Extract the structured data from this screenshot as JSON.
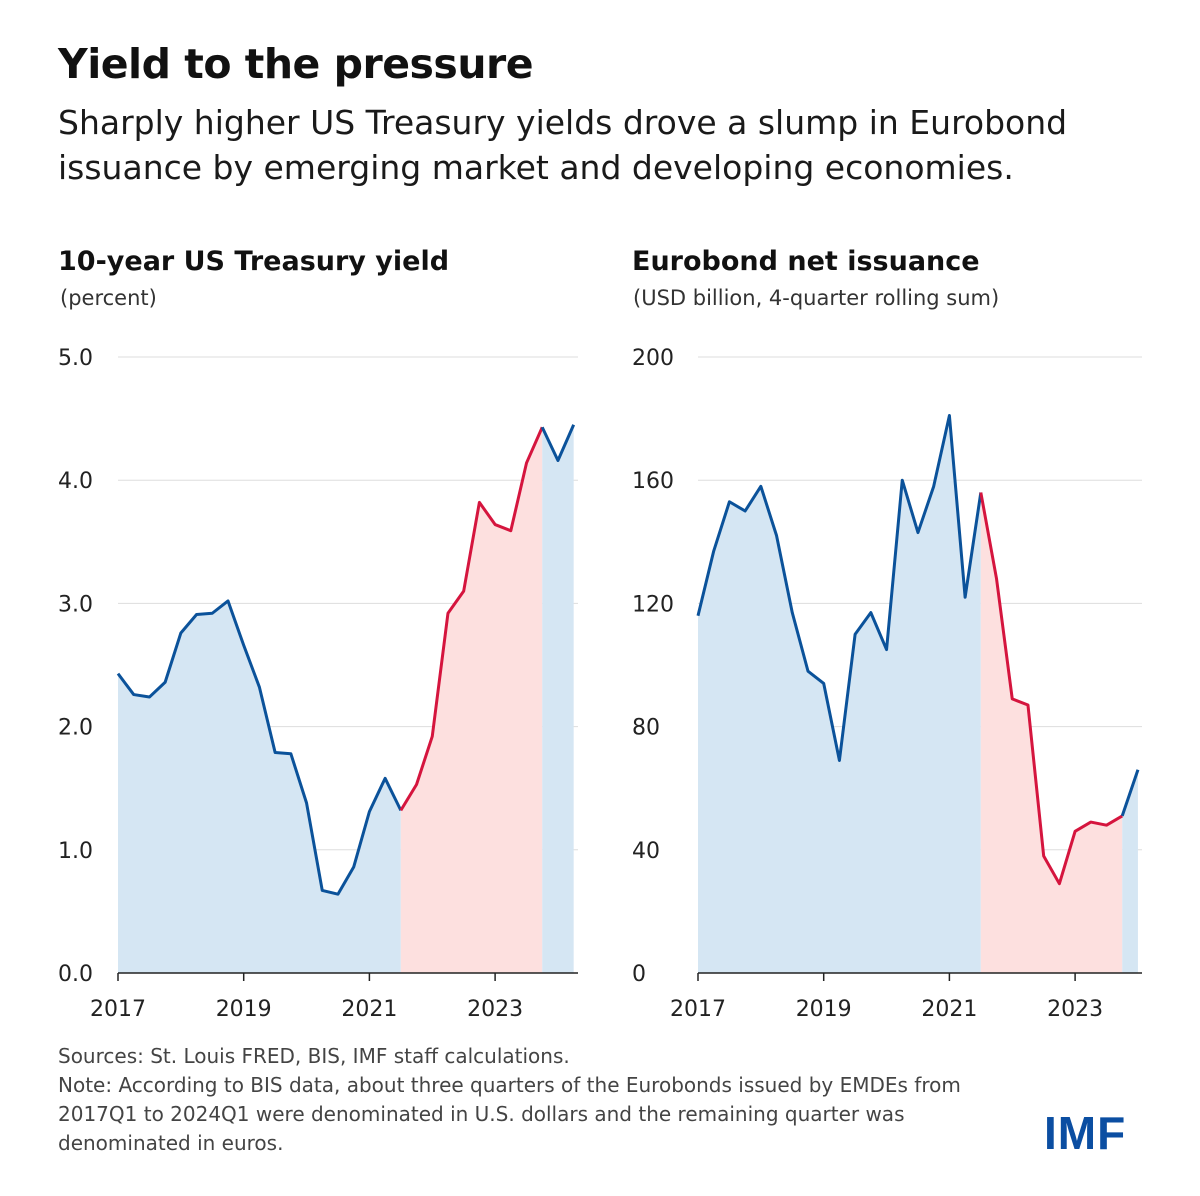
{
  "title": "Yield to the pressure",
  "subtitle": "Sharply higher US Treasury yields drove a slump in Eurobond issuance by emerging market and developing economies.",
  "footer": {
    "sources": "Sources: St. Louis FRED, BIS, IMF staff calculations.",
    "note": "Note: According to BIS data, about three quarters of the Eurobonds issued by EMDEs from 2017Q1 to 2024Q1 were denominated in U.S. dollars and the remaining quarter was denominated in euros."
  },
  "logo": "IMF",
  "colors": {
    "line_blue": "#0b529a",
    "line_red": "#d5153e",
    "fill_blue": "#d5e6f3",
    "fill_red": "#fde0df",
    "grid": "#dddddd"
  },
  "chart_data": [
    {
      "type": "area",
      "title": "10-year US Treasury yield",
      "unit": "(percent)",
      "ylim": [
        0,
        5
      ],
      "yticks": [
        "0.0",
        "1.0",
        "2.0",
        "3.0",
        "4.0",
        "5.0"
      ],
      "ytick_values": [
        0,
        1,
        2,
        3,
        4,
        5
      ],
      "xticks": [
        "2017",
        "2019",
        "2021",
        "2023"
      ],
      "grid": true,
      "highlight": {
        "start": "2021Q3",
        "end": "2023Q4"
      },
      "x": [
        "2017Q1",
        "2017Q2",
        "2017Q3",
        "2017Q4",
        "2018Q1",
        "2018Q2",
        "2018Q3",
        "2018Q4",
        "2019Q1",
        "2019Q2",
        "2019Q3",
        "2019Q4",
        "2020Q1",
        "2020Q2",
        "2020Q3",
        "2020Q4",
        "2021Q1",
        "2021Q2",
        "2021Q3",
        "2021Q4",
        "2022Q1",
        "2022Q2",
        "2022Q3",
        "2022Q4",
        "2023Q1",
        "2023Q2",
        "2023Q3",
        "2023Q4",
        "2024Q1",
        "2024Q2"
      ],
      "values": [
        2.43,
        2.26,
        2.24,
        2.36,
        2.76,
        2.91,
        2.92,
        3.02,
        2.66,
        2.32,
        1.79,
        1.78,
        1.38,
        0.67,
        0.64,
        0.86,
        1.31,
        1.58,
        1.32,
        1.53,
        1.92,
        2.92,
        3.1,
        3.82,
        3.64,
        3.59,
        4.14,
        4.43,
        4.16,
        4.45
      ]
    },
    {
      "type": "area",
      "title": "Eurobond net issuance",
      "unit": "(USD billion, 4-quarter rolling sum)",
      "ylim": [
        0,
        200
      ],
      "yticks": [
        "0",
        "40",
        "80",
        "120",
        "160",
        "200"
      ],
      "ytick_values": [
        0,
        40,
        80,
        120,
        160,
        200
      ],
      "xticks": [
        "2017",
        "2019",
        "2021",
        "2023"
      ],
      "grid": true,
      "highlight": {
        "start": "2021Q3",
        "end": "2023Q4"
      },
      "x": [
        "2017Q1",
        "2017Q2",
        "2017Q3",
        "2017Q4",
        "2018Q1",
        "2018Q2",
        "2018Q3",
        "2018Q4",
        "2019Q1",
        "2019Q2",
        "2019Q3",
        "2019Q4",
        "2020Q1",
        "2020Q2",
        "2020Q3",
        "2020Q4",
        "2021Q1",
        "2021Q2",
        "2021Q3",
        "2021Q4",
        "2022Q1",
        "2022Q2",
        "2022Q3",
        "2022Q4",
        "2023Q1",
        "2023Q2",
        "2023Q3",
        "2023Q4",
        "2024Q1"
      ],
      "values": [
        116,
        137,
        153,
        150,
        158,
        142,
        117,
        98,
        94,
        69,
        110,
        117,
        105,
        160,
        143,
        158,
        181,
        122,
        156,
        128,
        89,
        87,
        38,
        29,
        46,
        49,
        48,
        51,
        66
      ]
    }
  ]
}
